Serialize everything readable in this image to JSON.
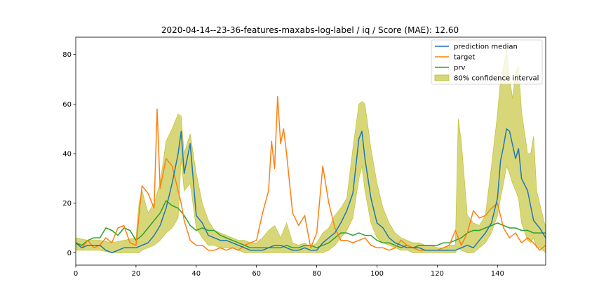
{
  "chart_data": {
    "type": "line",
    "title": "2020-04-14--23-36-features-maxabs-log-label / iq / Score (MAE): 12.60",
    "xlim": [
      0,
      156
    ],
    "ylim": [
      -5,
      87
    ],
    "xticks": [
      0,
      20,
      40,
      60,
      80,
      100,
      120,
      140
    ],
    "yticks": [
      0,
      20,
      40,
      60,
      80
    ],
    "grid": false,
    "legend_position": "top-right",
    "series": [
      {
        "name": "prediction median",
        "color": "#1f77b4",
        "x": [
          0,
          2,
          4,
          6,
          8,
          10,
          12,
          14,
          16,
          18,
          20,
          22,
          24,
          26,
          28,
          30,
          32,
          34,
          35,
          36,
          38,
          40,
          42,
          44,
          46,
          48,
          50,
          52,
          54,
          56,
          58,
          60,
          62,
          64,
          66,
          68,
          70,
          72,
          74,
          76,
          78,
          80,
          82,
          84,
          86,
          88,
          90,
          92,
          94,
          95,
          96,
          98,
          100,
          102,
          104,
          106,
          108,
          110,
          112,
          114,
          116,
          118,
          120,
          122,
          124,
          126,
          128,
          130,
          132,
          134,
          136,
          138,
          140,
          141,
          142,
          143,
          144,
          146,
          147,
          148,
          150,
          152,
          154,
          156
        ],
        "y": [
          4,
          2,
          3,
          3,
          3,
          1,
          0,
          1,
          2,
          2,
          2,
          3,
          4,
          7,
          11,
          18,
          28,
          40,
          49,
          32,
          44,
          15,
          12,
          7,
          6,
          5,
          5,
          4,
          3,
          2,
          1,
          1,
          1,
          2,
          3,
          3,
          2,
          1,
          1,
          2,
          1,
          1,
          4,
          6,
          8,
          12,
          17,
          24,
          46,
          49,
          38,
          22,
          12,
          10,
          6,
          4,
          3,
          2,
          2,
          2,
          1,
          1,
          1,
          1,
          1,
          1,
          2,
          3,
          2,
          5,
          8,
          12,
          22,
          37,
          43,
          50,
          49,
          38,
          42,
          30,
          25,
          13,
          10,
          6
        ]
      },
      {
        "name": "target",
        "color": "#ff7f0e",
        "x": [
          0,
          2,
          4,
          6,
          8,
          10,
          12,
          14,
          16,
          18,
          20,
          22,
          24,
          26,
          27,
          28,
          30,
          32,
          34,
          35,
          36,
          38,
          40,
          42,
          44,
          46,
          48,
          50,
          52,
          54,
          56,
          58,
          60,
          62,
          64,
          65,
          66,
          67,
          68,
          69,
          70,
          72,
          74,
          76,
          78,
          80,
          82,
          84,
          86,
          88,
          90,
          92,
          94,
          96,
          98,
          100,
          102,
          104,
          106,
          108,
          110,
          112,
          114,
          116,
          118,
          120,
          122,
          124,
          126,
          128,
          130,
          132,
          134,
          136,
          138,
          140,
          142,
          144,
          146,
          148,
          150,
          152,
          154,
          156
        ],
        "y": [
          4,
          2,
          5,
          2,
          3,
          6,
          4,
          10,
          11,
          4,
          3,
          27,
          24,
          18,
          58,
          26,
          38,
          35,
          25,
          20,
          13,
          5,
          3,
          3,
          1,
          1,
          2,
          1,
          2,
          1,
          3,
          4,
          5,
          16,
          25,
          45,
          34,
          63,
          44,
          50,
          40,
          16,
          11,
          15,
          2,
          8,
          35,
          20,
          10,
          5,
          5,
          4,
          5,
          6,
          3,
          2,
          2,
          1,
          2,
          5,
          3,
          2,
          1,
          1,
          1,
          1,
          2,
          3,
          9,
          3,
          8,
          17,
          14,
          15,
          18,
          20,
          10,
          6,
          8,
          4,
          6,
          4,
          1,
          3
        ]
      },
      {
        "name": "prv",
        "color": "#2ca02c",
        "x": [
          0,
          2,
          4,
          6,
          8,
          10,
          12,
          14,
          16,
          18,
          20,
          22,
          24,
          26,
          28,
          30,
          32,
          34,
          36,
          38,
          40,
          42,
          44,
          46,
          48,
          50,
          52,
          54,
          56,
          58,
          60,
          62,
          64,
          66,
          68,
          70,
          72,
          74,
          76,
          78,
          80,
          82,
          84,
          86,
          88,
          90,
          92,
          94,
          96,
          98,
          100,
          102,
          104,
          106,
          108,
          110,
          112,
          114,
          116,
          118,
          120,
          122,
          124,
          126,
          128,
          130,
          132,
          134,
          136,
          138,
          140,
          142,
          144,
          146,
          148,
          150,
          152,
          154,
          156
        ],
        "y": [
          4,
          3,
          5,
          6,
          6,
          10,
          9,
          7,
          10,
          9,
          5,
          7,
          10,
          13,
          16,
          21,
          19,
          18,
          15,
          11,
          9,
          10,
          9,
          9,
          7,
          6,
          5,
          4,
          3,
          2,
          2,
          2,
          2,
          2,
          2,
          3,
          2,
          2,
          3,
          3,
          2,
          3,
          4,
          6,
          8,
          8,
          7,
          8,
          7,
          7,
          5,
          4,
          4,
          3,
          2,
          3,
          2,
          3,
          3,
          3,
          3,
          4,
          4,
          5,
          6,
          8,
          9,
          9,
          10,
          11,
          12,
          11,
          10,
          10,
          9,
          9,
          8,
          8,
          8
        ]
      }
    ],
    "band": {
      "name": "80% confidence interval",
      "color": "#bcbd22",
      "opacity": 0.6,
      "x": [
        0,
        4,
        8,
        12,
        16,
        20,
        21,
        22,
        24,
        26,
        28,
        30,
        32,
        34,
        35,
        36,
        38,
        40,
        42,
        44,
        46,
        48,
        50,
        52,
        54,
        56,
        58,
        60,
        62,
        64,
        66,
        68,
        70,
        72,
        74,
        76,
        78,
        80,
        82,
        84,
        86,
        88,
        90,
        92,
        94,
        95,
        96,
        98,
        100,
        102,
        104,
        106,
        108,
        110,
        112,
        114,
        116,
        118,
        120,
        122,
        124,
        126,
        127,
        128,
        130,
        132,
        134,
        136,
        138,
        140,
        141,
        142,
        143,
        144,
        145,
        146,
        147,
        148,
        150,
        151,
        152,
        153,
        154,
        156
      ],
      "upper": [
        6,
        5,
        5,
        4,
        5,
        6,
        20,
        25,
        16,
        20,
        28,
        45,
        50,
        56,
        55,
        40,
        48,
        32,
        20,
        13,
        9,
        8,
        7,
        6,
        5,
        5,
        4,
        4,
        6,
        9,
        11,
        6,
        12,
        4,
        3,
        4,
        2,
        4,
        8,
        10,
        15,
        18,
        22,
        42,
        60,
        61,
        60,
        42,
        28,
        18,
        12,
        8,
        6,
        5,
        4,
        4,
        3,
        3,
        2,
        2,
        3,
        3,
        54,
        45,
        15,
        12,
        11,
        15,
        35,
        56,
        70,
        75,
        82,
        71,
        62,
        73,
        75,
        57,
        40,
        40,
        47,
        25,
        20,
        10
      ],
      "lower": [
        1,
        1,
        1,
        0,
        0,
        0,
        0,
        1,
        2,
        3,
        5,
        8,
        10,
        14,
        38,
        25,
        28,
        10,
        6,
        3,
        3,
        2,
        2,
        2,
        1,
        0,
        0,
        0,
        0,
        0,
        0,
        0,
        0,
        0,
        0,
        0,
        0,
        0,
        0,
        1,
        3,
        6,
        9,
        14,
        30,
        35,
        25,
        12,
        6,
        4,
        3,
        2,
        1,
        1,
        0,
        0,
        0,
        0,
        0,
        0,
        0,
        0,
        2,
        1,
        0,
        0,
        2,
        4,
        8,
        15,
        22,
        28,
        35,
        32,
        28,
        25,
        22,
        12,
        5,
        4,
        6,
        2,
        2,
        0
      ]
    }
  }
}
